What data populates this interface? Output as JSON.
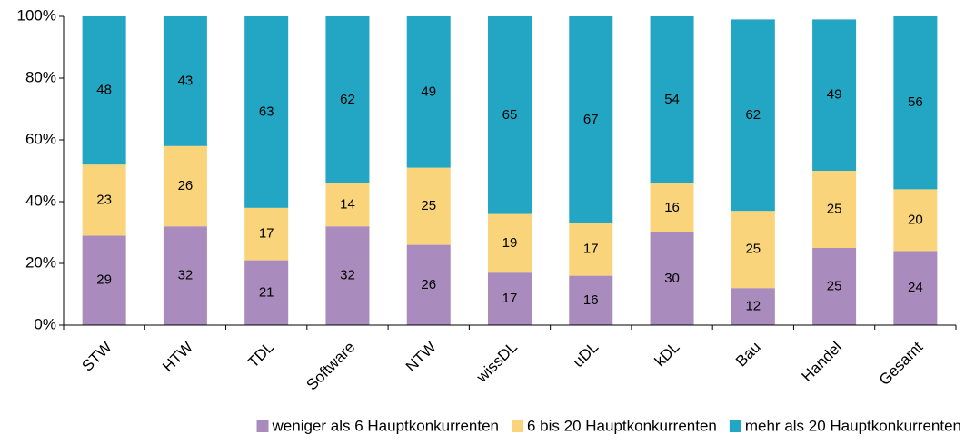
{
  "chart_data": {
    "type": "stacked_bar",
    "categories": [
      "STW",
      "HTW",
      "TDL",
      "Software",
      "NTW",
      "wissDL",
      "uDL",
      "kDL",
      "Bau",
      "Handel",
      "Gesamt"
    ],
    "series": [
      {
        "name": "weniger als 6 Hauptkonkurrenten",
        "color": "#a98bbd",
        "values": [
          29,
          32,
          21,
          32,
          26,
          17,
          16,
          30,
          12,
          25,
          24
        ]
      },
      {
        "name": "6 bis 20 Hauptkonkurrenten",
        "color": "#f9d47a",
        "values": [
          23,
          26,
          17,
          14,
          25,
          19,
          17,
          16,
          25,
          25,
          20
        ]
      },
      {
        "name": "mehr als 20 Hauptkonkurrenten",
        "color": "#22a6c4",
        "values": [
          48,
          43,
          63,
          62,
          49,
          65,
          67,
          54,
          62,
          49,
          56
        ]
      }
    ],
    "ylim": [
      0,
      100
    ],
    "yticks": [
      {
        "value": 0,
        "label": "0%"
      },
      {
        "value": 20,
        "label": "20%"
      },
      {
        "value": 40,
        "label": "40%"
      },
      {
        "value": 60,
        "label": "60%"
      },
      {
        "value": 80,
        "label": "80%"
      },
      {
        "value": 100,
        "label": "100%"
      }
    ],
    "legend": "bottom"
  }
}
